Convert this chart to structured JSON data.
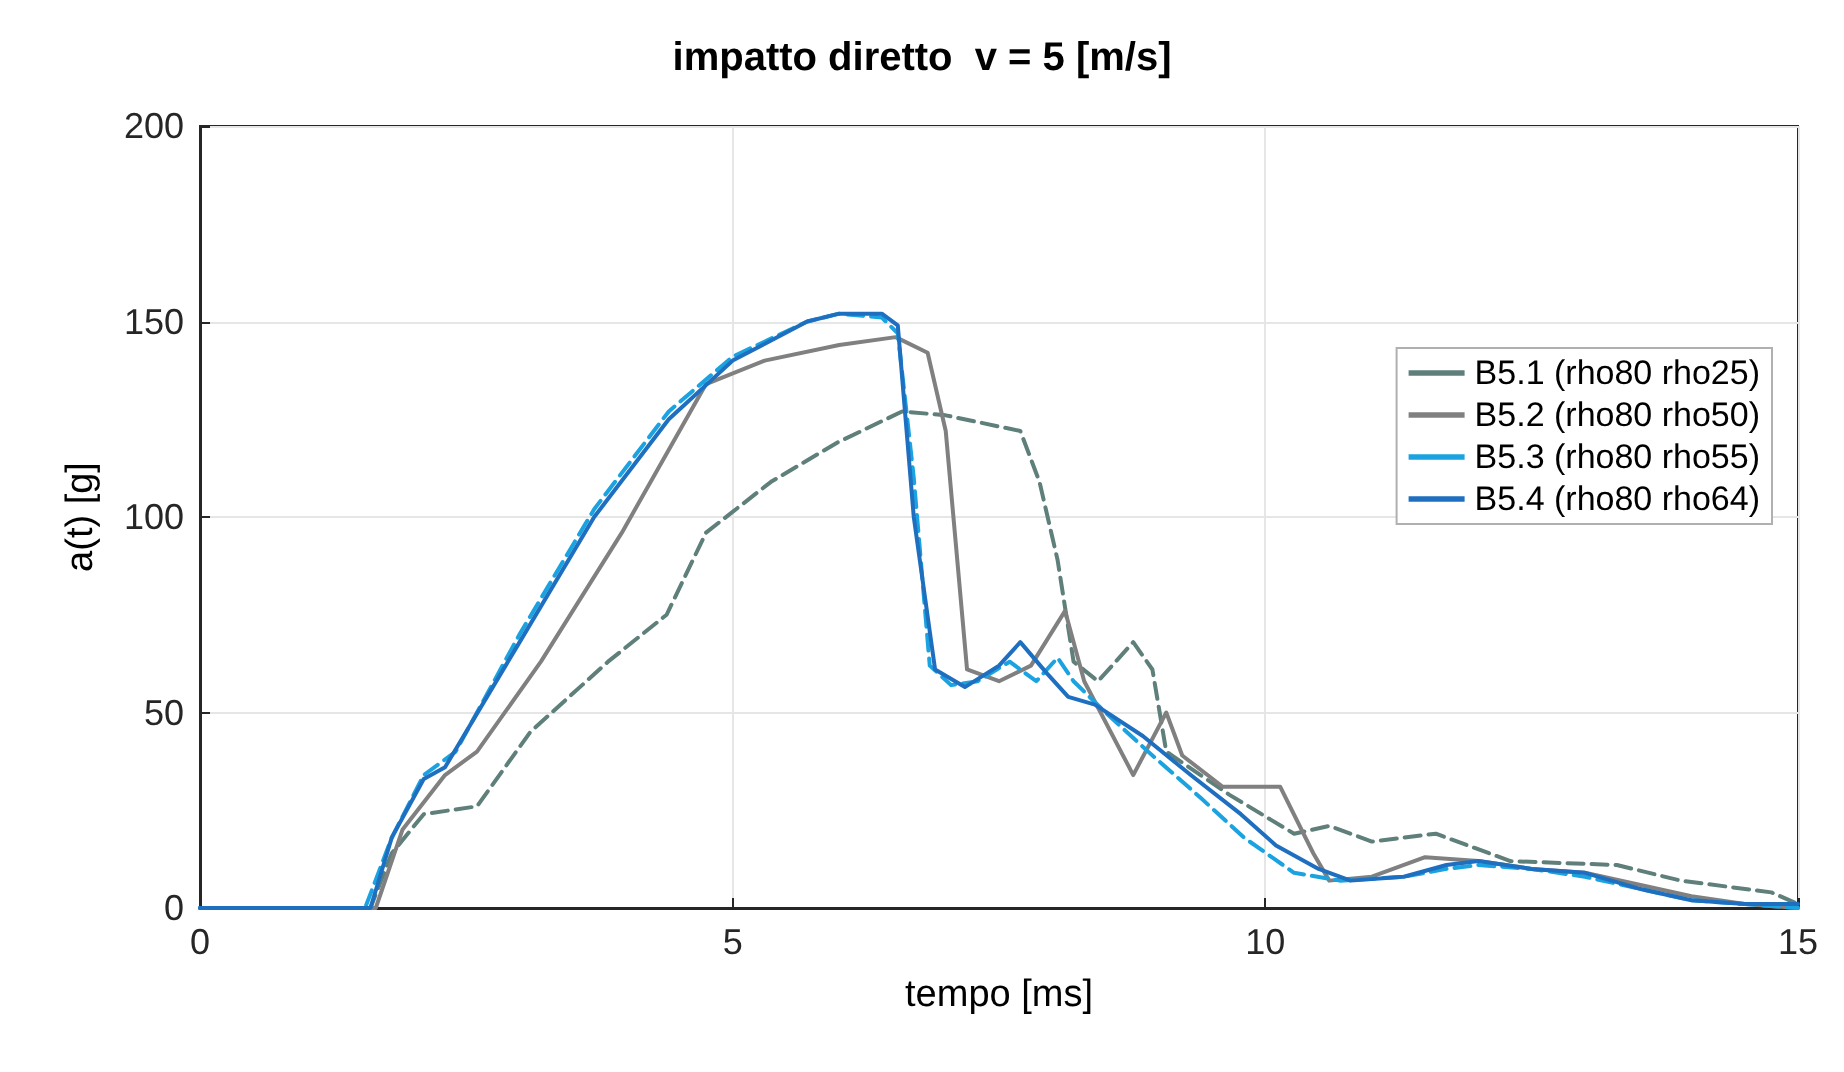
{
  "chart_data": {
    "type": "line",
    "title": "impatto diretto  v = 5 [m/s]",
    "xlabel": "tempo [ms]",
    "ylabel": "a(t) [g]",
    "xlim": [
      0,
      15
    ],
    "xticks": [
      0,
      5,
      10,
      15
    ],
    "ylim": [
      0,
      200
    ],
    "yticks": [
      0,
      50,
      100,
      150,
      200
    ],
    "grid": true,
    "legend": "right",
    "marker": "none",
    "series": [
      {
        "name": "B5.1 (rho80 rho25)",
        "color": "#5f7f7a",
        "line_style": "dashed",
        "x": [
          0,
          1.6,
          1.8,
          2.1,
          2.6,
          3.1,
          3.83,
          4.38,
          4.75,
          5.36,
          5.98,
          6.59,
          7.0,
          7.7,
          7.88,
          8.05,
          8.2,
          8.43,
          8.76,
          8.94,
          9.07,
          9.66,
          10.27,
          10.6,
          11.0,
          11.6,
          12.3,
          13.3,
          13.9,
          14.75,
          15
        ],
        "values": [
          0,
          0,
          14,
          24,
          26,
          45,
          63,
          75,
          96,
          109,
          119,
          127,
          126,
          122,
          109,
          89,
          63,
          58,
          68,
          61,
          40,
          29,
          19,
          21,
          17,
          19,
          12,
          11,
          7,
          4,
          1
        ]
      },
      {
        "name": "B5.2 (rho80 rho50)",
        "color": "#808080",
        "line_style": "solid",
        "x": [
          0,
          1.65,
          1.9,
          2.3,
          2.6,
          3.2,
          3.96,
          4.75,
          5.3,
          6.0,
          6.53,
          6.83,
          7.0,
          7.2,
          7.5,
          7.8,
          8.12,
          8.3,
          8.76,
          9.07,
          9.22,
          9.6,
          10.14,
          10.45,
          10.6,
          11.0,
          11.5,
          12.0,
          12.5,
          13.0,
          13.5,
          14.0,
          14.5,
          15
        ],
        "values": [
          0,
          0,
          20,
          34,
          40,
          63,
          96,
          134,
          140,
          144,
          146,
          142,
          122,
          61,
          58,
          62,
          76,
          58,
          34,
          50,
          39,
          31,
          31,
          14,
          7,
          8,
          13,
          12,
          10,
          9,
          6,
          3,
          1,
          0
        ]
      },
      {
        "name": "B5.3 (rho80 rho55)",
        "color": "#1aa3e0",
        "line_style": "dashed",
        "x": [
          0,
          1.55,
          1.8,
          2.1,
          2.4,
          3.0,
          3.7,
          4.4,
          5.0,
          5.7,
          6.0,
          6.4,
          6.55,
          6.7,
          6.85,
          7.05,
          7.3,
          7.6,
          7.85,
          8.05,
          8.2,
          8.5,
          8.9,
          9.4,
          9.8,
          10.27,
          10.7,
          11.3,
          11.7,
          12.0,
          12.5,
          13.0,
          13.5,
          14.0,
          14.5,
          15
        ],
        "values": [
          0,
          0,
          18,
          34,
          40,
          70,
          102,
          127,
          141,
          150,
          152,
          151,
          147,
          110,
          62,
          57,
          58,
          63,
          58,
          64,
          58,
          50,
          40,
          28,
          18,
          9,
          7,
          8,
          10,
          11,
          10,
          8,
          5,
          2,
          1,
          0
        ]
      },
      {
        "name": "B5.4 (rho80 rho64)",
        "color": "#1f6fc0",
        "line_style": "solid",
        "x": [
          0,
          1.6,
          1.8,
          2.1,
          2.3,
          3.0,
          3.7,
          4.4,
          5.0,
          5.7,
          6.0,
          6.4,
          6.55,
          6.7,
          6.9,
          7.18,
          7.5,
          7.7,
          7.95,
          8.15,
          8.4,
          8.85,
          9.3,
          9.77,
          10.1,
          10.5,
          10.8,
          11.3,
          11.7,
          12.0,
          12.5,
          13.0,
          13.5,
          14.0,
          14.5,
          15
        ],
        "values": [
          0,
          0,
          18,
          33,
          36,
          68,
          100,
          125,
          140,
          150,
          152,
          152,
          149,
          100,
          61,
          56.5,
          62,
          68,
          60,
          54,
          52,
          44,
          34,
          24,
          16,
          10,
          7,
          8,
          11,
          12,
          10,
          9,
          5,
          2,
          1,
          1
        ]
      }
    ]
  }
}
